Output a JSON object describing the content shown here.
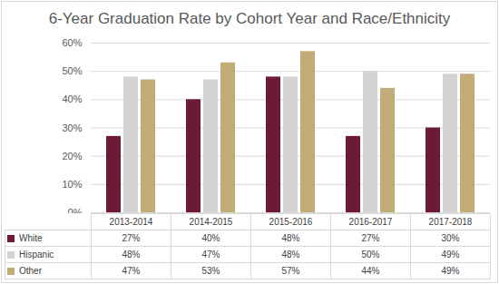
{
  "chart_data": {
    "type": "bar",
    "title": "6-Year Graduation Rate by Cohort Year and Race/Ethnicity",
    "categories": [
      "2013-2014",
      "2014-2015",
      "2015-2016",
      "2016-2017",
      "2017-2018"
    ],
    "series": [
      {
        "name": "White",
        "color": "#6d1a36",
        "values": [
          27,
          40,
          48,
          27,
          30
        ],
        "value_labels": [
          "27%",
          "40%",
          "48%",
          "27%",
          "30%"
        ]
      },
      {
        "name": "Hispanic",
        "color": "#d3d3d3",
        "values": [
          48,
          47,
          48,
          50,
          49
        ],
        "value_labels": [
          "48%",
          "47%",
          "48%",
          "50%",
          "49%"
        ]
      },
      {
        "name": "Other",
        "color": "#c2ad78",
        "values": [
          47,
          53,
          57,
          44,
          49
        ],
        "value_labels": [
          "47%",
          "53%",
          "57%",
          "44%",
          "49%"
        ]
      }
    ],
    "ylim": [
      0,
      60
    ],
    "yticks": [
      {
        "value": 0,
        "label": "0%"
      },
      {
        "value": 10,
        "label": "10%"
      },
      {
        "value": 20,
        "label": "20%"
      },
      {
        "value": 30,
        "label": "30%"
      },
      {
        "value": 40,
        "label": "40%"
      },
      {
        "value": 50,
        "label": "50%"
      },
      {
        "value": 60,
        "label": "60%"
      }
    ],
    "grid": true
  }
}
